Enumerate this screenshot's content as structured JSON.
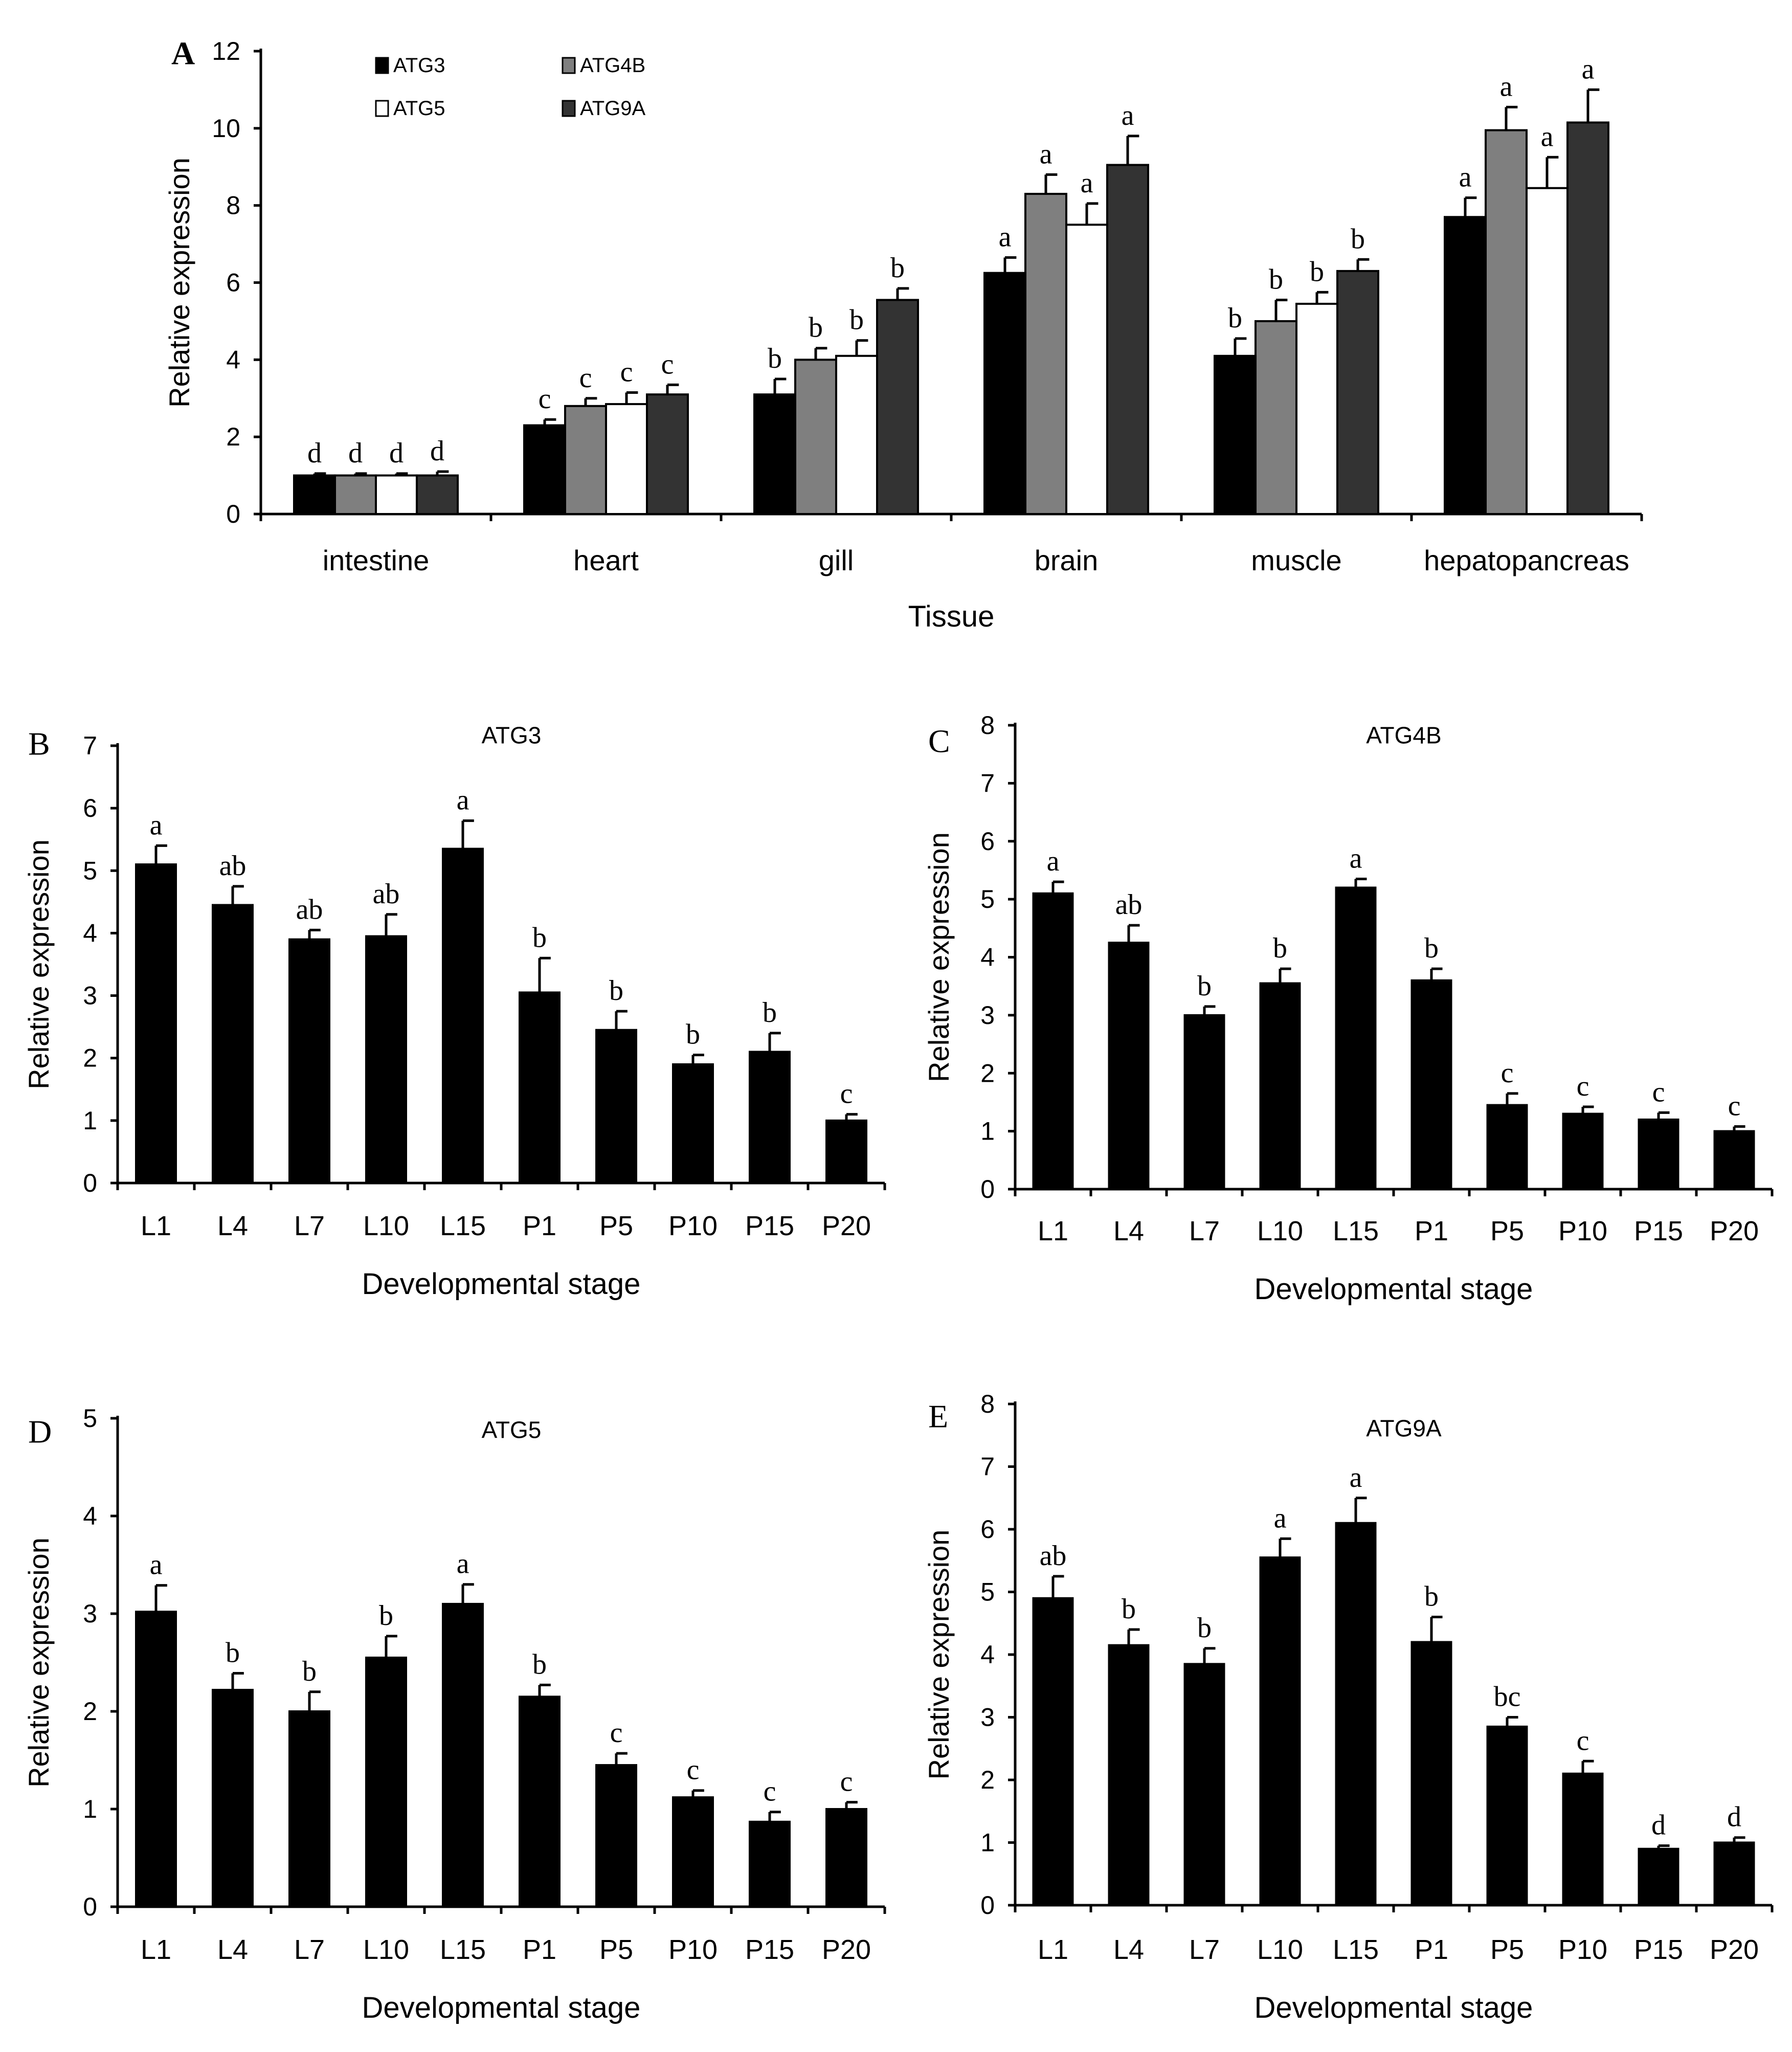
{
  "colors": {
    "ATG3": "#000000",
    "ATG4B": "#7f7f7f",
    "ATG5": "#ffffff",
    "ATG9A": "#333333"
  },
  "chart_data": [
    {
      "id": "A",
      "panel": "A",
      "type": "bar",
      "title": "",
      "xlabel": "Tissue",
      "ylabel": "Relative expression",
      "ylim": [
        0,
        12
      ],
      "yticks": [
        "0",
        "2",
        "4",
        "6",
        "8",
        "10",
        "12"
      ],
      "categories": [
        "intestine",
        "heart",
        "gill",
        "brain",
        "muscle",
        "hepatopancreas"
      ],
      "legend_position": "top-left",
      "series": [
        {
          "name": "ATG3",
          "values": [
            1.0,
            2.3,
            3.1,
            6.25,
            4.1,
            7.7
          ],
          "errors": [
            0.05,
            0.15,
            0.4,
            0.4,
            0.45,
            0.5
          ],
          "letters": [
            "d",
            "c",
            "b",
            "a",
            "b",
            "a"
          ]
        },
        {
          "name": "ATG4B",
          "values": [
            1.0,
            2.8,
            4.0,
            8.3,
            5.0,
            9.95
          ],
          "errors": [
            0.05,
            0.2,
            0.3,
            0.5,
            0.55,
            0.6
          ],
          "letters": [
            "d",
            "c",
            "b",
            "a",
            "b",
            "a"
          ]
        },
        {
          "name": "ATG5",
          "values": [
            1.0,
            2.85,
            4.1,
            7.5,
            5.45,
            8.45
          ],
          "errors": [
            0.05,
            0.3,
            0.4,
            0.55,
            0.3,
            0.8
          ],
          "letters": [
            "d",
            "c",
            "b",
            "a",
            "b",
            "a"
          ]
        },
        {
          "name": "ATG9A",
          "values": [
            1.0,
            3.1,
            5.55,
            9.05,
            6.3,
            10.15
          ],
          "errors": [
            0.1,
            0.25,
            0.3,
            0.75,
            0.3,
            0.85
          ],
          "letters": [
            "d",
            "c",
            "b",
            "a",
            "b",
            "a"
          ]
        }
      ]
    },
    {
      "id": "B",
      "panel": "B",
      "type": "bar",
      "title": "ATG3",
      "xlabel": "Developmental stage",
      "ylabel": "Relative expression",
      "ylim": [
        0,
        7
      ],
      "yticks": [
        "0",
        "1",
        "2",
        "3",
        "4",
        "5",
        "6",
        "7"
      ],
      "categories": [
        "L1",
        "L4",
        "L7",
        "L10",
        "L15",
        "P1",
        "P5",
        "P10",
        "P15",
        "P20"
      ],
      "values": [
        5.1,
        4.45,
        3.9,
        3.95,
        5.35,
        3.05,
        2.45,
        1.9,
        2.1,
        1.0
      ],
      "errors": [
        0.3,
        0.3,
        0.15,
        0.35,
        0.45,
        0.55,
        0.3,
        0.15,
        0.3,
        0.1
      ],
      "letters": [
        "a",
        "ab",
        "ab",
        "ab",
        "a",
        "b",
        "b",
        "b",
        "b",
        "c"
      ]
    },
    {
      "id": "C",
      "panel": "C",
      "type": "bar",
      "title": "ATG4B",
      "xlabel": "Developmental stage",
      "ylabel": "Relative expression",
      "ylim": [
        0,
        8
      ],
      "yticks": [
        "0",
        "1",
        "2",
        "3",
        "4",
        "5",
        "6",
        "7",
        "8"
      ],
      "categories": [
        "L1",
        "L4",
        "L7",
        "L10",
        "L15",
        "P1",
        "P5",
        "P10",
        "P15",
        "P20"
      ],
      "values": [
        5.1,
        4.25,
        3.0,
        3.55,
        5.2,
        3.6,
        1.45,
        1.3,
        1.2,
        1.0
      ],
      "errors": [
        0.2,
        0.3,
        0.15,
        0.25,
        0.15,
        0.2,
        0.2,
        0.12,
        0.12,
        0.08
      ],
      "letters": [
        "a",
        "ab",
        "b",
        "b",
        "a",
        "b",
        "c",
        "c",
        "c",
        "c"
      ]
    },
    {
      "id": "D",
      "panel": "D",
      "type": "bar",
      "title": "ATG5",
      "xlabel": "Developmental stage",
      "ylabel": "Relative expression",
      "ylim": [
        0,
        5
      ],
      "yticks": [
        "0",
        "1",
        "2",
        "3",
        "4",
        "5"
      ],
      "categories": [
        "L1",
        "L4",
        "L7",
        "L10",
        "L15",
        "P1",
        "P5",
        "P10",
        "P15",
        "P20"
      ],
      "values": [
        3.02,
        2.22,
        2.0,
        2.55,
        3.1,
        2.15,
        1.45,
        1.12,
        0.87,
        1.0
      ],
      "errors": [
        0.27,
        0.17,
        0.2,
        0.22,
        0.2,
        0.12,
        0.12,
        0.07,
        0.1,
        0.07
      ],
      "letters": [
        "a",
        "b",
        "b",
        "b",
        "a",
        "b",
        "c",
        "c",
        "c",
        "c"
      ]
    },
    {
      "id": "E",
      "panel": "E",
      "type": "bar",
      "title": "ATG9A",
      "xlabel": "Developmental stage",
      "ylabel": "Relative expression",
      "ylim": [
        0,
        8
      ],
      "yticks": [
        "0",
        "1",
        "2",
        "3",
        "4",
        "5",
        "6",
        "7",
        "8"
      ],
      "categories": [
        "L1",
        "L4",
        "L7",
        "L10",
        "L15",
        "P1",
        "P5",
        "P10",
        "P15",
        "P20"
      ],
      "values": [
        4.9,
        4.15,
        3.85,
        5.55,
        6.1,
        4.2,
        2.85,
        2.1,
        0.9,
        1.0
      ],
      "errors": [
        0.35,
        0.25,
        0.25,
        0.3,
        0.4,
        0.4,
        0.15,
        0.2,
        0.05,
        0.08
      ],
      "letters": [
        "ab",
        "b",
        "b",
        "a",
        "a",
        "b",
        "bc",
        "c",
        "d",
        "d"
      ]
    }
  ]
}
